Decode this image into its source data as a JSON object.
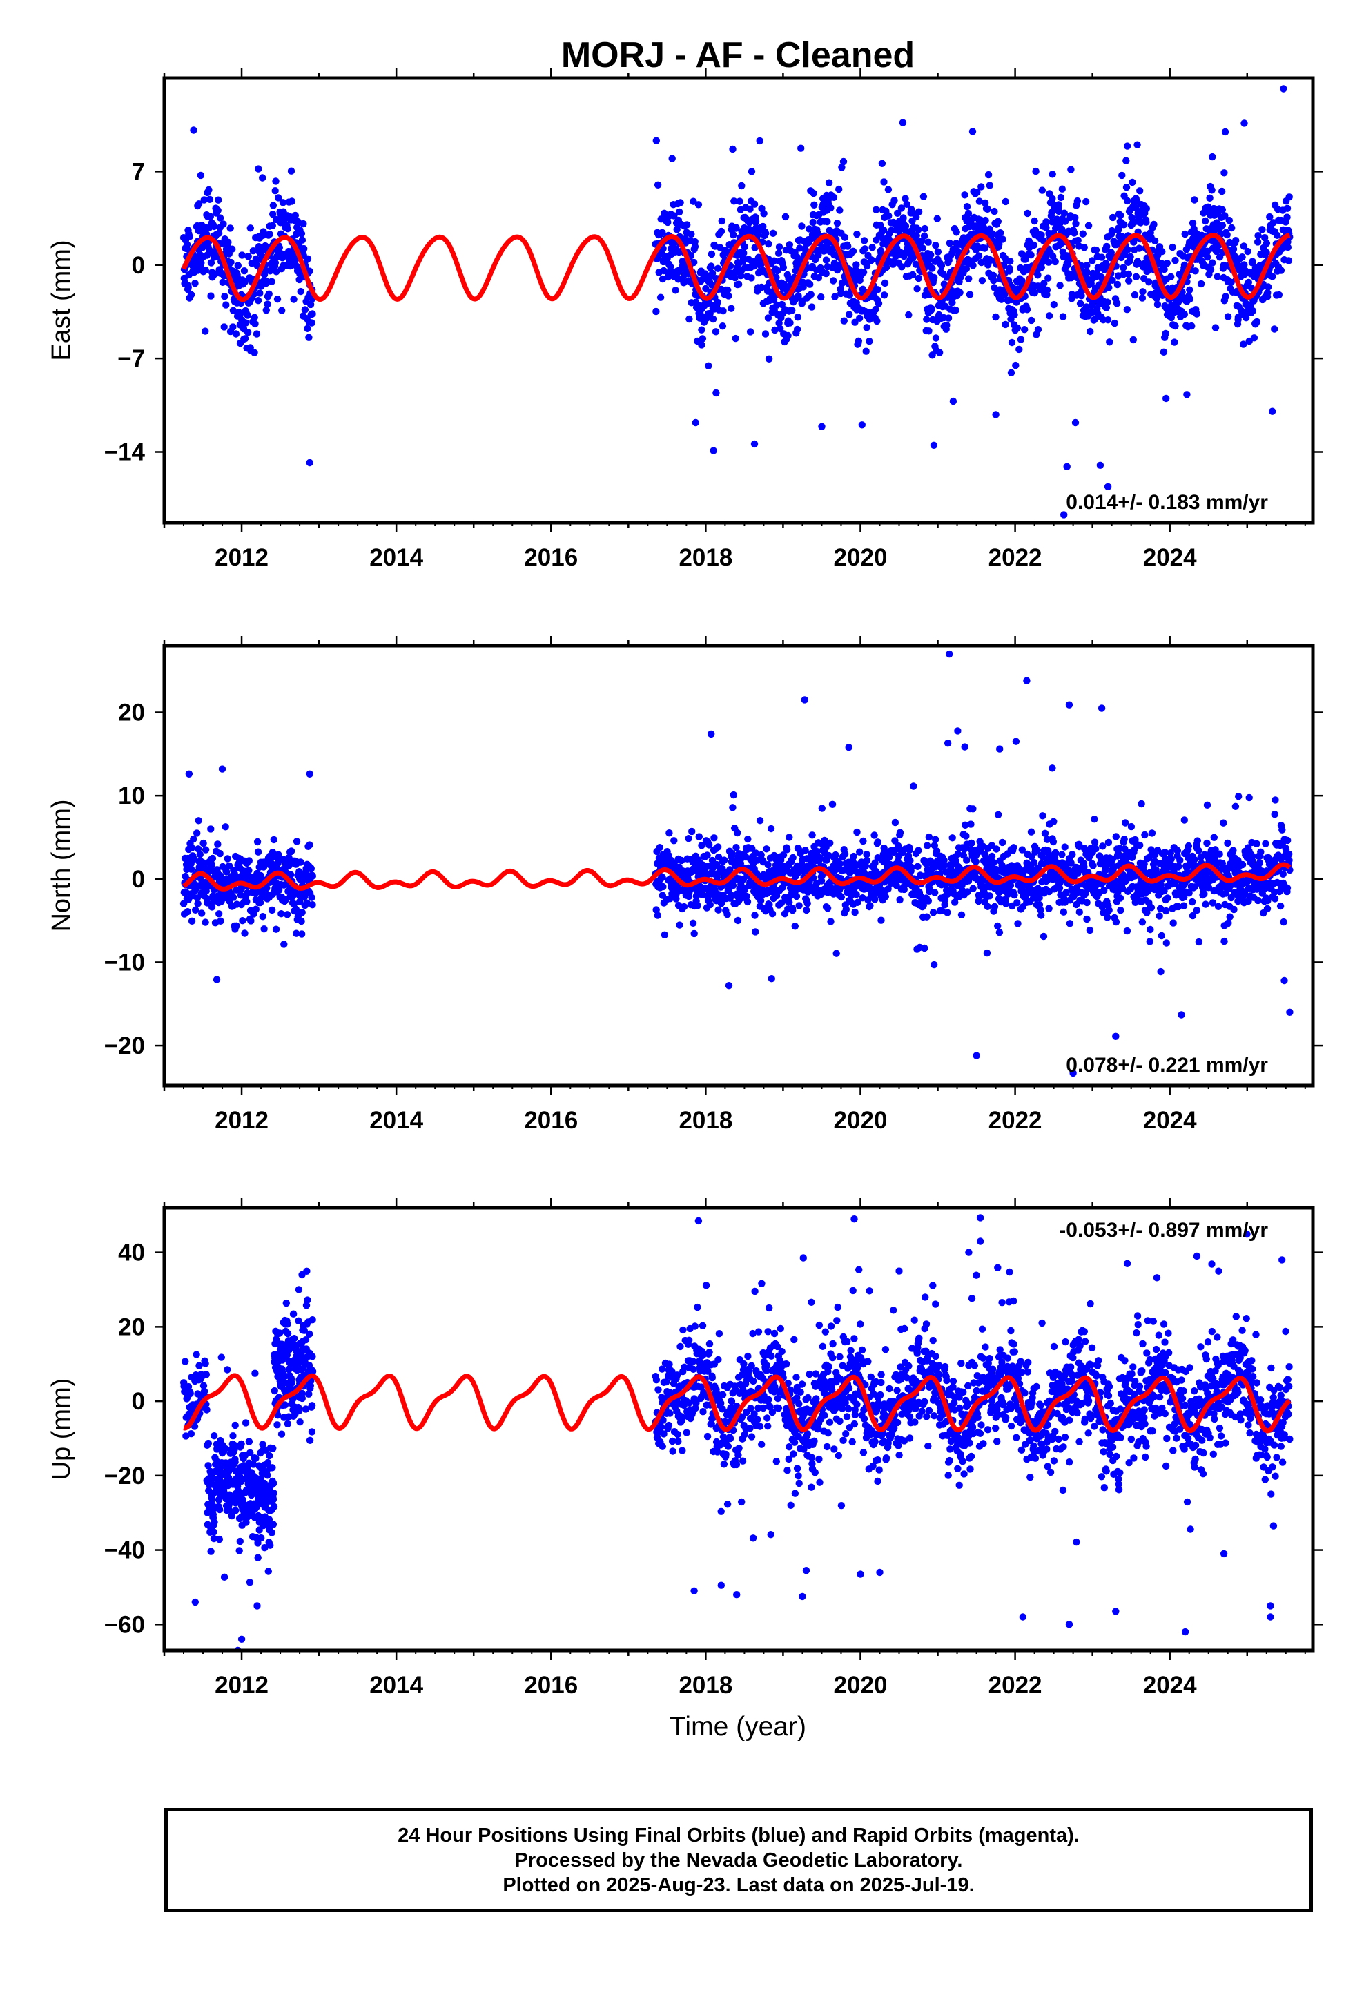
{
  "title": "MORJ  - AF - Cleaned",
  "xlabel": "Time (year)",
  "caption": {
    "line1": "24 Hour Positions Using Final Orbits (blue) and Rapid Orbits (magenta).",
    "line2": "Processed by the Nevada Geodetic Laboratory.",
    "line3": "Plotted on 2025-Aug-23. Last data on 2025-Jul-19."
  },
  "colors": {
    "points": "#0000ff",
    "fit": "#ff0000",
    "axes": "#000000"
  },
  "chart_data": [
    {
      "type": "scatter",
      "ylabel": "East (mm)",
      "rate_text": "0.014+/- 0.183 mm/yr",
      "rate_position": "bottom-right",
      "xlim": [
        2011.0,
        2025.85
      ],
      "ylim": [
        -19.3,
        14.0
      ],
      "yticks": [
        7,
        0,
        -7,
        -14
      ],
      "ytick_labels": [
        "7",
        "0",
        "−7",
        "−14"
      ],
      "xticks": [
        2012,
        2014,
        2016,
        2018,
        2020,
        2022,
        2024
      ],
      "data_gap": [
        2012.92,
        2017.35
      ],
      "series": [
        {
          "kind": "points",
          "segments": [
            [
              2011.25,
              2012.92
            ],
            [
              2017.35,
              2025.55
            ]
          ],
          "noise_sd": 1.8,
          "wide_sd": 4.5,
          "wide_frac": 0.06,
          "count": 2300,
          "seed": 11
        },
        {
          "kind": "fit",
          "amp1": 2.3,
          "phase1": 0.28,
          "amp2": 0.25,
          "phase2": 0.1,
          "offset": 0.0,
          "trend": 0.014,
          "x0": 2018.0
        }
      ],
      "outliers": [
        [
          2025.47,
          13.2
        ],
        [
          2012.88,
          -14.8
        ],
        [
          2021.45,
          10.0
        ],
        [
          2022.67,
          -15.1
        ],
        [
          2023.1,
          -15.0
        ],
        [
          2023.2,
          -16.6
        ],
        [
          2022.63,
          -18.7
        ],
        [
          2022.78,
          -11.8
        ],
        [
          2020.95,
          -13.5
        ],
        [
          2017.87,
          -11.8
        ],
        [
          2018.1,
          -13.9
        ],
        [
          2018.63,
          -13.4
        ],
        [
          2019.5,
          -12.1
        ],
        [
          2023.45,
          8.9
        ],
        [
          2023.58,
          9.0
        ],
        [
          2024.22,
          -9.7
        ],
        [
          2021.75,
          -11.2
        ],
        [
          2020.28,
          7.6
        ],
        [
          2021.2,
          -10.2
        ],
        [
          2024.55,
          8.1
        ]
      ]
    },
    {
      "type": "scatter",
      "ylabel": "North (mm)",
      "rate_text": "0.078+/- 0.221 mm/yr",
      "rate_position": "bottom-right",
      "xlim": [
        2011.0,
        2025.85
      ],
      "ylim": [
        -24.8,
        28.0
      ],
      "yticks": [
        20,
        10,
        0,
        -10,
        -20
      ],
      "ytick_labels": [
        "20",
        "10",
        "0",
        "−10",
        "−20"
      ],
      "xticks": [
        2012,
        2014,
        2016,
        2018,
        2020,
        2022,
        2024
      ],
      "data_gap": [
        2012.92,
        2017.35
      ],
      "series": [
        {
          "kind": "points",
          "segments": [
            [
              2011.25,
              2012.92
            ],
            [
              2017.35,
              2025.55
            ]
          ],
          "noise_sd": 2.0,
          "wide_sd": 5.0,
          "wide_frac": 0.07,
          "count": 2300,
          "seed": 23
        },
        {
          "kind": "fit",
          "amp1": 0.6,
          "phase1": 0.2,
          "amp2": 0.55,
          "phase2": 0.35,
          "offset": 0.0,
          "trend": 0.078,
          "x0": 2018.0
        }
      ],
      "outliers": [
        [
          2021.15,
          27.0
        ],
        [
          2022.15,
          23.8
        ],
        [
          2022.7,
          20.9
        ],
        [
          2023.12,
          20.5
        ],
        [
          2019.28,
          21.5
        ],
        [
          2018.07,
          17.4
        ],
        [
          2011.75,
          13.2
        ],
        [
          2011.32,
          12.6
        ],
        [
          2012.88,
          12.6
        ],
        [
          2021.13,
          16.3
        ],
        [
          2021.5,
          -21.2
        ],
        [
          2022.75,
          -23.3
        ],
        [
          2024.15,
          -16.3
        ],
        [
          2025.55,
          -16.0
        ],
        [
          2025.48,
          -12.2
        ],
        [
          2018.3,
          -12.8
        ],
        [
          2023.3,
          -18.9
        ],
        [
          2019.85,
          15.8
        ],
        [
          2021.8,
          15.6
        ],
        [
          2024.85,
          8.7
        ]
      ]
    },
    {
      "type": "scatter",
      "ylabel": "Up (mm)",
      "rate_text": "-0.053+/- 0.897 mm/yr",
      "rate_position": "top-right",
      "xlim": [
        2011.0,
        2025.85
      ],
      "ylim": [
        -67.0,
        52.0
      ],
      "yticks": [
        40,
        20,
        0,
        -20,
        -40,
        -60
      ],
      "ytick_labels": [
        "40",
        "20",
        "0",
        "−20",
        "−40",
        "−60"
      ],
      "xticks": [
        2012,
        2014,
        2016,
        2018,
        2020,
        2022,
        2024
      ],
      "data_gap": [
        2012.92,
        2017.35
      ],
      "series": [
        {
          "kind": "points",
          "segments": [
            [
              2011.25,
              2011.55
            ]
          ],
          "base": 3,
          "noise_sd": 5.0,
          "wide_sd": 10,
          "wide_frac": 0.05,
          "count": 60,
          "seed": 31
        },
        {
          "kind": "points",
          "segments": [
            [
              2011.55,
              2012.42
            ]
          ],
          "base": -24,
          "noise_sd": 6.5,
          "wide_sd": 14,
          "wide_frac": 0.05,
          "count": 330,
          "seed": 32
        },
        {
          "kind": "points",
          "segments": [
            [
              2012.42,
              2012.92
            ]
          ],
          "base": 8,
          "noise_sd": 7.0,
          "wide_sd": 14,
          "wide_frac": 0.05,
          "count": 200,
          "seed": 33
        },
        {
          "kind": "points",
          "segments": [
            [
              2017.35,
              2025.55
            ]
          ],
          "noise_sd": 6.5,
          "wide_sd": 18,
          "wide_frac": 0.07,
          "count": 1900,
          "seed": 34
        },
        {
          "kind": "fit",
          "amp1": 6.0,
          "phase1": 0.57,
          "amp2": 2.2,
          "phase2": 0.85,
          "offset": 0.0,
          "trend": -0.053,
          "x0": 2018.0
        }
      ],
      "outliers": [
        [
          2019.92,
          49.0
        ],
        [
          2020.5,
          35.0
        ],
        [
          2021.4,
          40.0
        ],
        [
          2021.55,
          43.0
        ],
        [
          2023.45,
          37.0
        ],
        [
          2024.35,
          39.0
        ],
        [
          2025.45,
          38.0
        ],
        [
          2017.85,
          -51.0
        ],
        [
          2018.2,
          -49.5
        ],
        [
          2018.4,
          -52.0
        ],
        [
          2019.3,
          -45.5
        ],
        [
          2019.25,
          -52.5
        ],
        [
          2020.0,
          -46.5
        ],
        [
          2020.25,
          -46.0
        ],
        [
          2022.1,
          -58.0
        ],
        [
          2022.7,
          -60.0
        ],
        [
          2023.3,
          -56.5
        ],
        [
          2024.2,
          -62.0
        ],
        [
          2025.3,
          -58.0
        ],
        [
          2012.0,
          -64.0
        ],
        [
          2011.4,
          -54.0
        ],
        [
          2011.95,
          -67.0
        ],
        [
          2012.2,
          -55.0
        ],
        [
          2012.78,
          34.0
        ],
        [
          2024.7,
          -41.0
        ],
        [
          2025.3,
          -55.0
        ]
      ]
    }
  ]
}
